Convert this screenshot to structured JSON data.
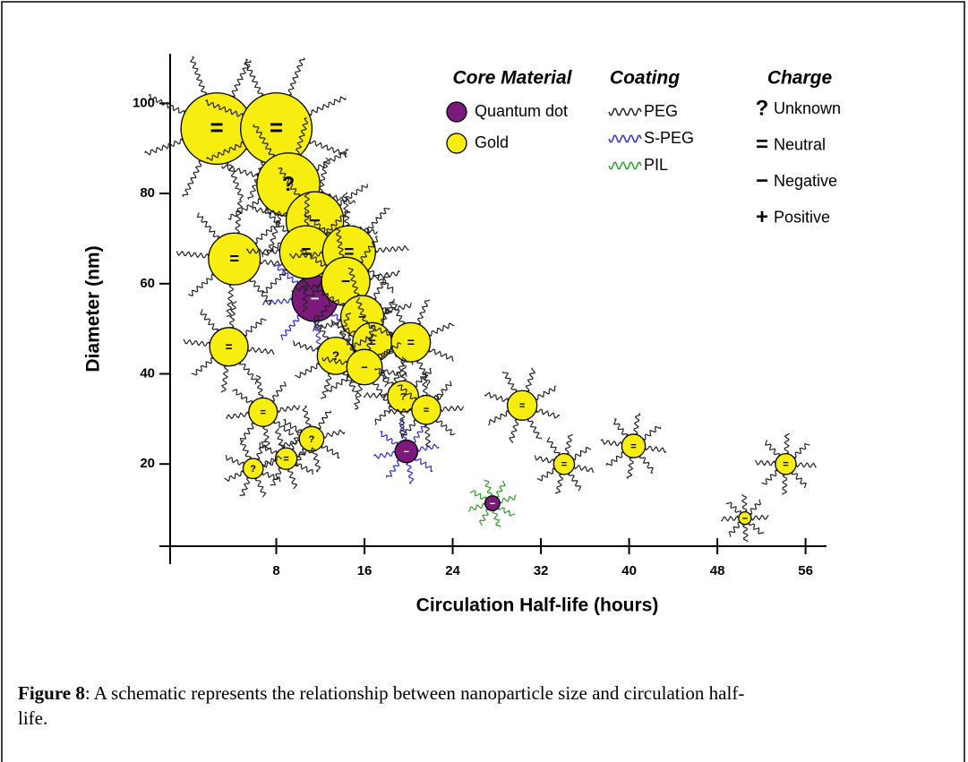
{
  "chart_data": {
    "type": "scatter",
    "x_label": "Circulation Half-life (hours)",
    "y_label": "Diameter (nm)",
    "xlim": [
      -2.6,
      57.9
    ],
    "ylim": [
      -2.2,
      111
    ],
    "xticks": [
      8,
      16,
      24,
      32,
      40,
      48,
      56
    ],
    "yticks": [
      20,
      40,
      60,
      80,
      100
    ],
    "core_material_title": "Core Material",
    "series": [
      {
        "name": "Quantum dot",
        "color": "#7b1a7b",
        "x": [
          11.5,
          19.8,
          27.6
        ],
        "values": [
          56.7,
          22.8,
          11.3
        ],
        "charges": [
          "−",
          "−",
          "−"
        ],
        "coating": [
          "S-PEG",
          "S-PEG",
          "PIL"
        ]
      },
      {
        "name": "Gold",
        "color": "#f7ee10",
        "x": [
          2.6,
          8,
          9.1,
          11.5,
          4.2,
          10.7,
          14.6,
          14.3,
          15.8,
          16.7,
          20.2,
          13.4,
          16,
          3.7,
          19.5,
          21.6,
          6.8,
          11.2,
          8.9,
          5.9,
          30.3,
          34.1,
          40.4,
          54.2,
          50.5
        ],
        "values": [
          94.4,
          94.4,
          82,
          74,
          65.5,
          67,
          67,
          60.5,
          52.6,
          47,
          47,
          44,
          41.5,
          46,
          35,
          32,
          31.5,
          25.6,
          21.2,
          19,
          33,
          20,
          24,
          20,
          8
        ],
        "charges": [
          "=",
          "=",
          "?",
          "−",
          "=",
          "=",
          "=",
          "−",
          "−",
          "=",
          "=",
          "?",
          "−",
          "=",
          "?",
          "=",
          "=",
          "?",
          "=",
          "?",
          "=",
          "=",
          "=",
          "=",
          "−"
        ],
        "coating": [
          "PEG",
          "PEG",
          "PEG",
          "PEG",
          "PEG",
          "PEG",
          "PEG",
          "PEG",
          "PEG",
          "PEG",
          "PEG",
          "PEG",
          "PEG",
          "PEG",
          "PEG",
          "PEG",
          "PEG",
          "PEG",
          "PEG",
          "PEG",
          "PEG",
          "PEG",
          "PEG",
          "PEG",
          "PEG"
        ]
      }
    ],
    "coating_legend": {
      "title": "Coating",
      "items": [
        {
          "name": "PEG",
          "color": "#222222"
        },
        {
          "name": "S-PEG",
          "color": "#2b2bd6"
        },
        {
          "name": "PIL",
          "color": "#2e9a2e"
        }
      ]
    },
    "charge_legend": {
      "title": "Charge",
      "items": [
        {
          "symbol": "?",
          "name": "Unknown"
        },
        {
          "symbol": "=",
          "name": "Neutral"
        },
        {
          "symbol": "−",
          "name": "Negative"
        },
        {
          "symbol": "+",
          "name": "Positive"
        }
      ]
    }
  },
  "caption": {
    "label": "Figure 8",
    "text": ": A schematic represents the relationship between nanoparticle size and circulation half-life."
  }
}
